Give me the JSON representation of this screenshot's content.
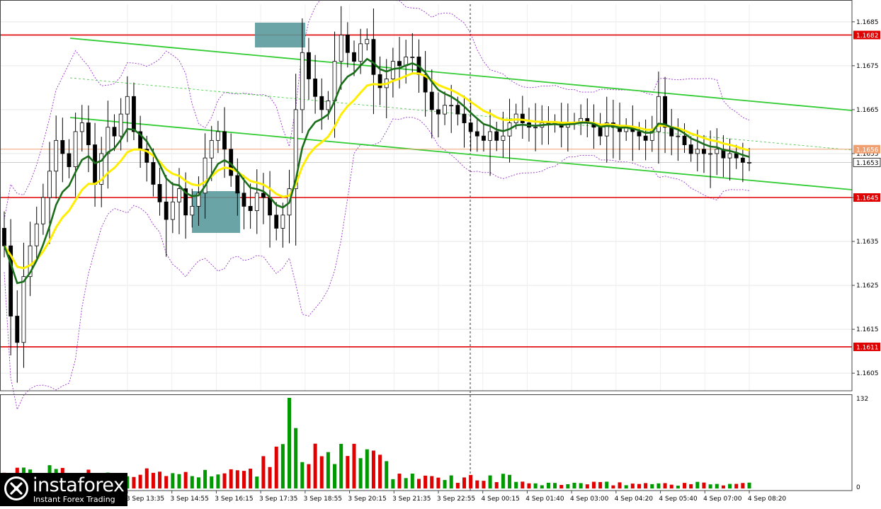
{
  "chart_data": {
    "type": "candlestick",
    "instrument_note": "",
    "price_axis": {
      "ylim": [
        1.1601,
        1.1689
      ],
      "ticks": [
        "1.1685",
        "1.1675",
        "1.1665",
        "1.1655",
        "1.1645",
        "1.1635",
        "1.1625",
        "1.1615",
        "1.1605"
      ],
      "tick_values": [
        1.1685,
        1.1675,
        1.1665,
        1.1655,
        1.1645,
        1.1635,
        1.1625,
        1.1615,
        1.1605
      ]
    },
    "time_axis": {
      "labels": [
        "3 Sep 13:35",
        "3 Sep 14:55",
        "3 Sep 16:15",
        "3 Sep 17:35",
        "3 Sep 18:55",
        "3 Sep 20:15",
        "3 Sep 21:35",
        "3 Sep 22:55",
        "4 Sep 00:15",
        "4 Sep 01:40",
        "4 Sep 03:00",
        "4 Sep 04:20",
        "4 Sep 05:40",
        "4 Sep 07:00",
        "4 Sep 08:20"
      ]
    },
    "levels": [
      {
        "label": "1.1682",
        "value": 1.1682,
        "color": "#e00000"
      },
      {
        "label": "1.1645",
        "value": 1.1645,
        "color": "#e00000"
      },
      {
        "label": "1.1611",
        "value": 1.1611,
        "color": "#e00000"
      },
      {
        "label": "1.1656",
        "value": 1.1656,
        "color": "#f0a070"
      }
    ],
    "current_price": {
      "label": "1.1653",
      "value": 1.1653
    },
    "volume_axis": {
      "max_label": "132",
      "zero_label": "0",
      "ylim": [
        0,
        132
      ]
    },
    "colors": {
      "up": "#009900",
      "down": "#e00000",
      "ma_fast": "#1a6e1a",
      "ma_slow": "#ffee00",
      "channel": "#33cc33",
      "envelope": "#9933cc"
    },
    "grid": true,
    "closes": [
      1.1634,
      1.1618,
      1.1612,
      1.1627,
      1.1634,
      1.1639,
      1.1645,
      1.1651,
      1.1658,
      1.1655,
      1.1652,
      1.166,
      1.1662,
      1.1657,
      1.1648,
      1.1655,
      1.1661,
      1.1659,
      1.1664,
      1.1668,
      1.166,
      1.1656,
      1.1653,
      1.1648,
      1.1644,
      1.164,
      1.1644,
      1.1647,
      1.1641,
      1.1643,
      1.1646,
      1.1654,
      1.1658,
      1.166,
      1.1656,
      1.165,
      1.1646,
      1.1643,
      1.1642,
      1.1646,
      1.1645,
      1.1641,
      1.1638,
      1.1641,
      1.1647,
      1.1665,
      1.1678,
      1.1672,
      1.1668,
      1.1665,
      1.1667,
      1.1676,
      1.1682,
      1.1678,
      1.1676,
      1.168,
      1.1681,
      1.1673,
      1.167,
      1.1672,
      1.1676,
      1.1675,
      1.1677,
      1.1677,
      1.1673,
      1.1669,
      1.1665,
      1.1664,
      1.1666,
      1.1666,
      1.1664,
      1.1662,
      1.166,
      1.1659,
      1.1658,
      1.166,
      1.1658,
      1.1659,
      1.1662,
      1.1664,
      1.1662,
      1.1661,
      1.1661,
      1.1662,
      1.1662,
      1.1662,
      1.1661,
      1.1662,
      1.1662,
      1.1663,
      1.1662,
      1.1661,
      1.1659,
      1.1662,
      1.1661,
      1.166,
      1.1661,
      1.166,
      1.1659,
      1.1658,
      1.166,
      1.1668,
      1.1661,
      1.1659,
      1.1659,
      1.1657,
      1.1655,
      1.1656,
      1.1655,
      1.1655,
      1.1656,
      1.1654,
      1.1655,
      1.1654,
      1.1653,
      1.1653
    ]
  },
  "brand": {
    "name": "instaforex",
    "tagline": "Instant Forex Trading"
  }
}
